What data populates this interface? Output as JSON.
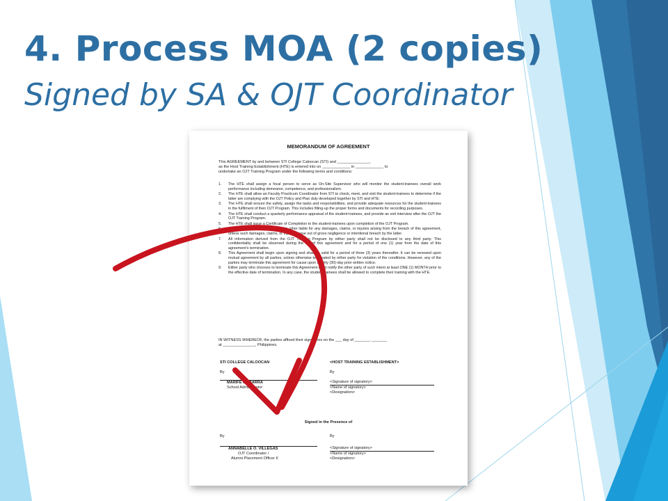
{
  "slide": {
    "title": "4. Process MOA (2 copies)",
    "subtitle": "Signed by SA & OJT Coordinator"
  },
  "document": {
    "heading": "MEMORANDUM OF AGREEMENT",
    "intro_line1": "This AGREEMENT by and between STI College Caloocan (STI) and _______________,",
    "intro_line2": "as the Host Training Establishment (HTE) is entered into on _____________ in _____________ to",
    "intro_line3": "undertake an OJT Training Program under the following terms and conditions:",
    "terms": [
      {
        "num": "1.",
        "text": "The HTE shall assign a focal person to serve as On-Site Supervisor who will monitor the student-trainees overall work performance including demeanor, competence, and professionalism."
      },
      {
        "num": "2.",
        "text": "The HTE shall allow an Faculty Practicum Coordinator from STI to check, meet, and visit the student-trainees to determine if the latter are complying with the OJT Policy and Plan duly developed together by STI and HTE;"
      },
      {
        "num": "3.",
        "text": "The HTE shall ensure the safety, assign the tasks and responsibilities, and provide adequate resources for the student-trainees in the fulfilment of their OJT Program. This includes filling-up the proper forms and documents for recording purposes."
      },
      {
        "num": "4.",
        "text": "The HTE shall conduct a quarterly performance appraisal of the student-trainees, and provide an exit interview after the OJT the OJT Training Program."
      },
      {
        "num": "5.",
        "text": "The HTE shall issue a Certificate of Completion to the student-trainees upon completion of the OJT Program."
      },
      {
        "num": "6.",
        "text": "Each of the party shall not hold the other liable for any damages, claims, or injuries arising from the breach of this agreement, unless such damages, claims, or injuries arose out of gross negligence or intentional breach by the latter."
      },
      {
        "num": "7.",
        "text": "All information derived from the OJT Training Program by either party shall not be disclosed to any third party. This confidentiality shall be observed during the life of this agreement and for a period of one (1) year from the date of this agreement's termination."
      },
      {
        "num": "8.",
        "text": "This Agreement shall begin upon signing and shall be valid for a period of three (3) years thereafter. It can be renewed upon mutual agreement by all parties, unless otherwise terminated by either party for violation of the conditions. However, any of the parties may terminate this agreement for cause upon a thirty (30)-day prior written notice."
      },
      {
        "num": "9.",
        "text": "Either party who chooses to terminate this Agreement must notify the other party of such intent at least ONE (1) MONTH prior to the effective date of termination. In any case, the student-trainees shall be allowed to complete their training with the HTE."
      }
    ],
    "witness_line1": "IN WITNESS WHEREOF, the parties affixed their signatures on the ___ day of _______, _______",
    "witness_line2": "at _______________, Philippines.",
    "left_party": "STI COLLEGE CALOOCAN",
    "right_party": "<HOST TRAINING ESTABLISHMENT>",
    "by_label": "By",
    "sa_name": "MARIFE C. IBARRA",
    "sa_title": "School Administrator",
    "sig_of_signatory": "<Signature of signatory>",
    "name_of_signatory": "<Name of signatory>",
    "designation": "<Designation>",
    "presence_heading": "Signed in the Presence of",
    "coord_name": "ANNABELLE O. VILLEGAS",
    "coord_title1": "OJT Coordinator /",
    "coord_title2": "Alumni Placement Officer II"
  },
  "colors": {
    "title": "#2d6fa3",
    "arrow": "#c8141e",
    "accent_dark": "#2a6e9e",
    "accent_light": "#8fd0f0"
  }
}
